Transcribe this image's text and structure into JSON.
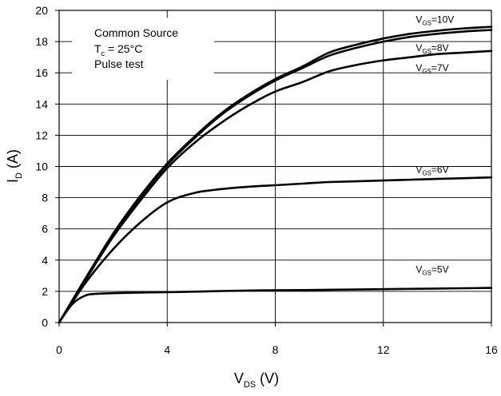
{
  "chart_data": {
    "type": "line",
    "x_axis": {
      "label_main": "V",
      "label_sub": "DS",
      "label_unit": " (V)",
      "min": 0,
      "max": 16,
      "ticks": [
        0,
        4,
        8,
        12,
        16
      ]
    },
    "y_axis": {
      "label_main": "I",
      "label_sub": "D",
      "label_unit": " (A)",
      "min": 0,
      "max": 20,
      "ticks": [
        0,
        2,
        4,
        6,
        8,
        10,
        12,
        14,
        16,
        18,
        20
      ]
    },
    "grid": true,
    "annotation": {
      "line1": "Common Source",
      "line2_main": "T",
      "line2_sub": "c",
      "line2_rest": " = 25°C",
      "line3": "Pulse test"
    },
    "series": [
      {
        "name": "V_GS=10V",
        "label_main": "V",
        "label_sub": "GS",
        "label_rest": "=10V",
        "x": [
          0,
          1,
          2,
          3,
          4,
          5,
          6,
          7,
          8,
          9,
          10,
          11,
          12,
          13,
          14,
          15,
          16
        ],
        "y": [
          0,
          2.9,
          5.7,
          8.1,
          10.2,
          11.9,
          13.4,
          14.6,
          15.6,
          16.4,
          17.3,
          17.8,
          18.2,
          18.5,
          18.7,
          18.85,
          18.95
        ]
      },
      {
        "name": "V_GS=8V",
        "label_main": "V",
        "label_sub": "GS",
        "label_rest": "=8V",
        "x": [
          0,
          1,
          2,
          3,
          4,
          5,
          6,
          7,
          8,
          9,
          10,
          11,
          12,
          13,
          14,
          15,
          16
        ],
        "y": [
          0,
          2.85,
          5.6,
          8.0,
          10.1,
          11.8,
          13.3,
          14.5,
          15.5,
          16.3,
          17.1,
          17.6,
          18.0,
          18.3,
          18.5,
          18.65,
          18.75
        ]
      },
      {
        "name": "V_GS=7V",
        "label_main": "V",
        "label_sub": "GS",
        "label_rest": "=7V",
        "x": [
          0,
          1,
          2,
          3,
          4,
          5,
          6,
          7,
          8,
          9,
          10,
          11,
          12,
          13,
          14,
          15,
          16
        ],
        "y": [
          0,
          2.8,
          5.5,
          7.8,
          9.9,
          11.5,
          12.8,
          13.9,
          14.8,
          15.4,
          16.1,
          16.5,
          16.8,
          17.0,
          17.2,
          17.3,
          17.4
        ]
      },
      {
        "name": "V_GS=6V",
        "label_main": "V",
        "label_sub": "GS",
        "label_rest": "=6V",
        "x": [
          0,
          1,
          2,
          3,
          4,
          5,
          6,
          7,
          8,
          9,
          10,
          11,
          12,
          13,
          14,
          15,
          16
        ],
        "y": [
          0,
          2.6,
          4.7,
          6.4,
          7.7,
          8.3,
          8.55,
          8.7,
          8.8,
          8.9,
          9.0,
          9.05,
          9.1,
          9.15,
          9.2,
          9.25,
          9.3
        ]
      },
      {
        "name": "V_GS=5V",
        "label_main": "V",
        "label_sub": "GS",
        "label_rest": "=5V",
        "x": [
          0,
          0.5,
          1,
          1.5,
          2,
          3,
          4,
          5,
          6,
          7,
          8,
          9,
          10,
          11,
          12,
          13,
          14,
          15,
          16
        ],
        "y": [
          0,
          1.2,
          1.75,
          1.85,
          1.88,
          1.92,
          1.95,
          1.98,
          2.02,
          2.05,
          2.07,
          2.08,
          2.1,
          2.12,
          2.14,
          2.16,
          2.18,
          2.2,
          2.22
        ]
      }
    ]
  }
}
